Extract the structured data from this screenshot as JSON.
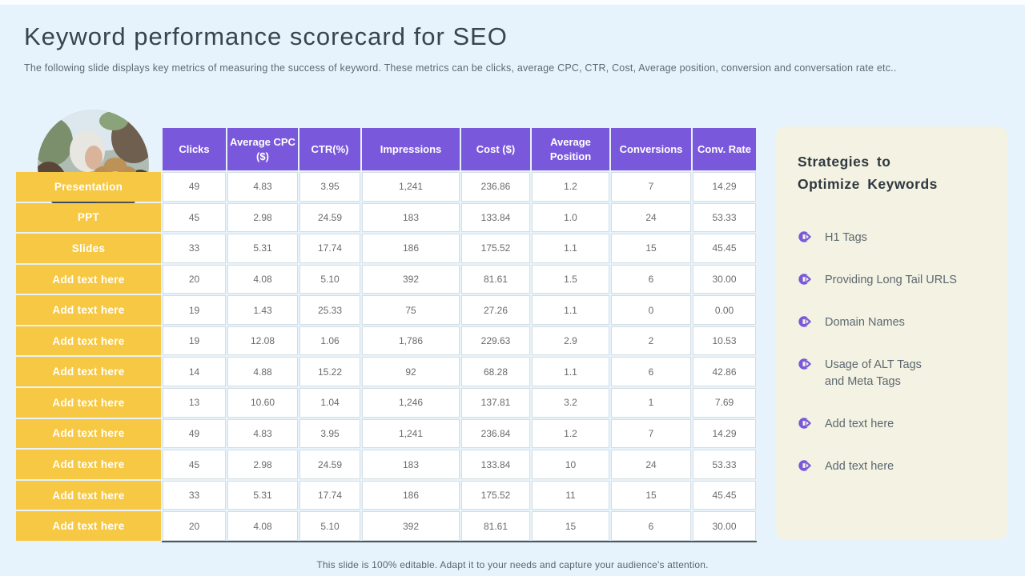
{
  "slide": {
    "title": "Keyword performance scorecard for SEO",
    "subtitle": "The following slide displays key metrics of measuring the success of keyword. These metrics can be clicks, average CPC, CTR, Cost, Average position, conversion and conversation rate etc..",
    "footer": "This slide is 100% editable. Adapt it to your needs and capture your audience's attention."
  },
  "table": {
    "columns": [
      "Clicks",
      "Average CPC ($)",
      "CTR(%)",
      "Impressions",
      "Cost ($)",
      "Average Position",
      "Conversions",
      "Conv. Rate"
    ],
    "rows": [
      {
        "label": "Presentation",
        "values": [
          "49",
          "4.83",
          "3.95",
          "1,241",
          "236.86",
          "1.2",
          "7",
          "14.29"
        ]
      },
      {
        "label": "PPT",
        "values": [
          "45",
          "2.98",
          "24.59",
          "183",
          "133.84",
          "1.0",
          "24",
          "53.33"
        ]
      },
      {
        "label": "Slides",
        "values": [
          "33",
          "5.31",
          "17.74",
          "186",
          "175.52",
          "1.1",
          "15",
          "45.45"
        ]
      },
      {
        "label": "Add text here",
        "values": [
          "20",
          "4.08",
          "5.10",
          "392",
          "81.61",
          "1.5",
          "6",
          "30.00"
        ]
      },
      {
        "label": "Add text here",
        "values": [
          "19",
          "1.43",
          "25.33",
          "75",
          "27.26",
          "1.1",
          "0",
          "0.00"
        ]
      },
      {
        "label": "Add text here",
        "values": [
          "19",
          "12.08",
          "1.06",
          "1,786",
          "229.63",
          "2.9",
          "2",
          "10.53"
        ]
      },
      {
        "label": "Add text here",
        "values": [
          "14",
          "4.88",
          "15.22",
          "92",
          "68.28",
          "1.1",
          "6",
          "42.86"
        ]
      },
      {
        "label": "Add text here",
        "values": [
          "13",
          "10.60",
          "1.04",
          "1,246",
          "137.81",
          "3.2",
          "1",
          "7.69"
        ]
      },
      {
        "label": "Add text here",
        "values": [
          "49",
          "4.83",
          "3.95",
          "1,241",
          "236.84",
          "1.2",
          "7",
          "14.29"
        ]
      },
      {
        "label": "Add text here",
        "values": [
          "45",
          "2.98",
          "24.59",
          "183",
          "133.84",
          "10",
          "24",
          "53.33"
        ]
      },
      {
        "label": "Add text here",
        "values": [
          "33",
          "5.31",
          "17.74",
          "186",
          "175.52",
          "11",
          "15",
          "45.45"
        ]
      },
      {
        "label": "Add text here",
        "values": [
          "20",
          "4.08",
          "5.10",
          "392",
          "81.61",
          "15",
          "6",
          "30.00"
        ]
      }
    ]
  },
  "sidebar": {
    "title": "Strategies to\nOptimize Keywords",
    "bullet_icon": "circular-arrow-icon",
    "items": [
      "H1 Tags",
      "Providing Long Tail URLS",
      "Domain Names",
      "Usage of ALT Tags\nand Meta Tags",
      "Add text here",
      "Add text here"
    ]
  },
  "colors": {
    "slide_background": "#e7f3fc",
    "header_purple": "#7a58dc",
    "label_yellow": "#f7c844",
    "panel_cream": "#f4f2e2",
    "title_text": "#36454e",
    "body_text": "#5c6870"
  }
}
